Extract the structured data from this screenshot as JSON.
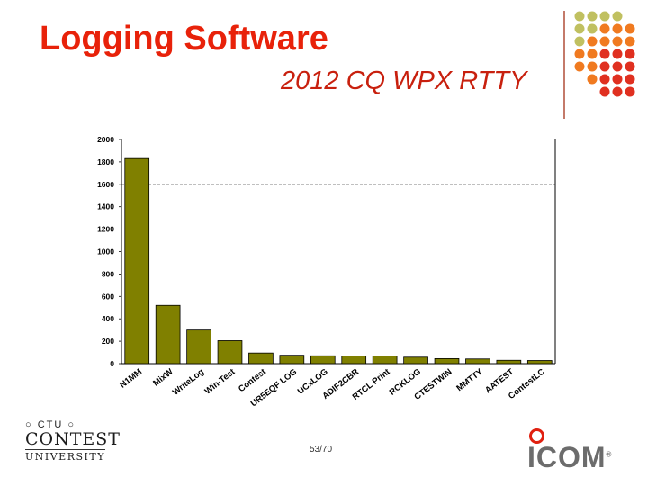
{
  "header": {
    "title": "Logging Software",
    "subtitle": "2012 CQ WPX RTTY"
  },
  "chart_data": {
    "type": "bar",
    "categories": [
      "N1MM",
      "MixW",
      "WriteLog",
      "Win-Test",
      "Contest",
      "UR5EQF LOG",
      "UCxLOG",
      "ADIF2CBR",
      "RTCL Print",
      "RCKLOG",
      "CTESTWIN",
      "MMTTY",
      "AATEST",
      "ContestLC"
    ],
    "values": [
      1830,
      520,
      300,
      205,
      95,
      75,
      70,
      68,
      68,
      58,
      45,
      42,
      30,
      28
    ],
    "yticks": [
      0,
      200,
      400,
      600,
      800,
      1000,
      1200,
      1400,
      1600,
      1800,
      2000
    ],
    "ylim": [
      0,
      2000
    ],
    "grid": "dashed at 1600",
    "bar_color": "#808000"
  },
  "footer": {
    "page_number": "53/70",
    "cu_top": "○ CTU ○",
    "cu_contest": "CONTEST",
    "cu_university": "UNIVERSITY",
    "icom": "ICOM",
    "icom_mark": "®"
  },
  "colors": {
    "title": "#e8220a",
    "dot_olive": "#c0c060",
    "dot_orange": "#f07a20",
    "dot_red": "#e03020"
  }
}
